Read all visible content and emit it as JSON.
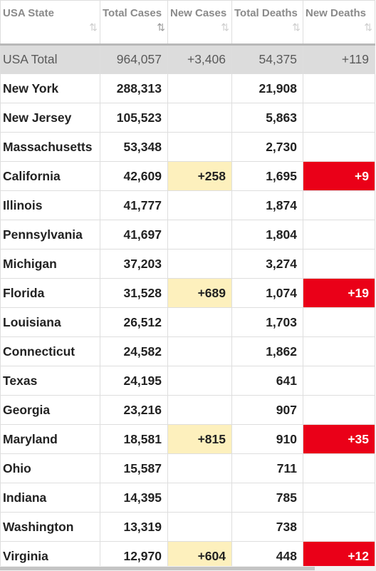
{
  "headers": [
    {
      "label": "USA State",
      "sort": "⇅"
    },
    {
      "label": "Total Cases",
      "sort": "⇅",
      "active": true
    },
    {
      "label": "New Cases",
      "sort": "⇅"
    },
    {
      "label": "Total Deaths",
      "sort": "⇅"
    },
    {
      "label": "New Deaths",
      "sort": "⇅"
    }
  ],
  "total": {
    "state": "USA Total",
    "total_cases": "964,057",
    "new_cases": "+3,406",
    "total_deaths": "54,375",
    "new_deaths": "+119"
  },
  "rows": [
    {
      "state": "New York",
      "total_cases": "288,313",
      "new_cases": "",
      "total_deaths": "21,908",
      "new_deaths": ""
    },
    {
      "state": "New Jersey",
      "total_cases": "105,523",
      "new_cases": "",
      "total_deaths": "5,863",
      "new_deaths": ""
    },
    {
      "state": "Massachusetts",
      "total_cases": "53,348",
      "new_cases": "",
      "total_deaths": "2,730",
      "new_deaths": ""
    },
    {
      "state": "California",
      "total_cases": "42,609",
      "new_cases": "+258",
      "total_deaths": "1,695",
      "new_deaths": "+9"
    },
    {
      "state": "Illinois",
      "total_cases": "41,777",
      "new_cases": "",
      "total_deaths": "1,874",
      "new_deaths": ""
    },
    {
      "state": "Pennsylvania",
      "total_cases": "41,697",
      "new_cases": "",
      "total_deaths": "1,804",
      "new_deaths": ""
    },
    {
      "state": "Michigan",
      "total_cases": "37,203",
      "new_cases": "",
      "total_deaths": "3,274",
      "new_deaths": ""
    },
    {
      "state": "Florida",
      "total_cases": "31,528",
      "new_cases": "+689",
      "total_deaths": "1,074",
      "new_deaths": "+19"
    },
    {
      "state": "Louisiana",
      "total_cases": "26,512",
      "new_cases": "",
      "total_deaths": "1,703",
      "new_deaths": ""
    },
    {
      "state": "Connecticut",
      "total_cases": "24,582",
      "new_cases": "",
      "total_deaths": "1,862",
      "new_deaths": ""
    },
    {
      "state": "Texas",
      "total_cases": "24,195",
      "new_cases": "",
      "total_deaths": "641",
      "new_deaths": ""
    },
    {
      "state": "Georgia",
      "total_cases": "23,216",
      "new_cases": "",
      "total_deaths": "907",
      "new_deaths": ""
    },
    {
      "state": "Maryland",
      "total_cases": "18,581",
      "new_cases": "+815",
      "total_deaths": "910",
      "new_deaths": "+35"
    },
    {
      "state": "Ohio",
      "total_cases": "15,587",
      "new_cases": "",
      "total_deaths": "711",
      "new_deaths": ""
    },
    {
      "state": "Indiana",
      "total_cases": "14,395",
      "new_cases": "",
      "total_deaths": "785",
      "new_deaths": ""
    },
    {
      "state": "Washington",
      "total_cases": "13,319",
      "new_cases": "",
      "total_deaths": "738",
      "new_deaths": ""
    },
    {
      "state": "Virginia",
      "total_cases": "12,970",
      "new_cases": "+604",
      "total_deaths": "448",
      "new_deaths": "+12"
    }
  ],
  "colors": {
    "new_cases_bg": "#fdf0bd",
    "new_deaths_bg": "#ea0018",
    "total_row_bg": "#dcdcdc",
    "header_text": "#8a8a8a"
  }
}
